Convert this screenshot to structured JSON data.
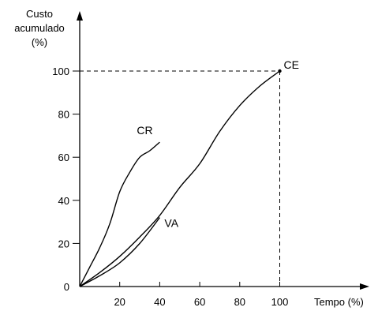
{
  "chart_data": {
    "type": "line",
    "ylabel_lines": [
      "Custo",
      "acumulado",
      "(%)"
    ],
    "xlabel": "Tempo (%)",
    "xlim": [
      0,
      100
    ],
    "ylim": [
      0,
      100
    ],
    "x_ticks": [
      20,
      40,
      60,
      80,
      100
    ],
    "y_ticks": [
      0,
      20,
      40,
      60,
      80,
      100
    ],
    "grid": false,
    "series": [
      {
        "name": "CE",
        "x": [
          0,
          10,
          20,
          30,
          40,
          50,
          60,
          70,
          80,
          90,
          100
        ],
        "y": [
          0,
          6.5,
          14,
          23,
          33,
          46,
          57,
          72,
          84,
          93,
          100
        ]
      },
      {
        "name": "CR",
        "x": [
          0,
          5,
          10,
          15,
          20,
          25,
          30,
          35,
          40
        ],
        "y": [
          0,
          9,
          18,
          29,
          44,
          53,
          60,
          63,
          67
        ]
      },
      {
        "name": "VA",
        "x": [
          0,
          10,
          20,
          30,
          40
        ],
        "y": [
          0,
          5,
          11,
          20,
          32
        ]
      }
    ],
    "annotations": [
      {
        "label": "CE",
        "target": "end-point",
        "x": 100,
        "y": 100
      }
    ]
  },
  "colors": {
    "line": "#000000",
    "background": "#ffffff"
  }
}
